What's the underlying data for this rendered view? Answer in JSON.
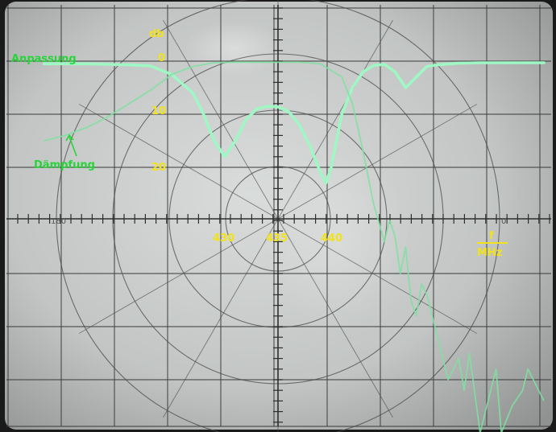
{
  "chart_data": {
    "type": "line",
    "ylabel": "db",
    "yticks": [
      "0",
      "10",
      "20"
    ],
    "xticks": [
      "430",
      "435",
      "440"
    ],
    "xlabel": "f",
    "xunit": "MHz",
    "scale_left": "180",
    "scale_right": "0",
    "grid": true,
    "series": [
      {
        "name": "Anpassung",
        "color": "#9ff7c4",
        "x": [
          413,
          415,
          417,
          419,
          421,
          423,
          425,
          427,
          428,
          429,
          430,
          431,
          432,
          433,
          434,
          435,
          436,
          437,
          438,
          439,
          439.5,
          440,
          440.5,
          441,
          442,
          443,
          444,
          445,
          446,
          447,
          448,
          449,
          450,
          452,
          454,
          456,
          458,
          460
        ],
        "y": [
          -0.5,
          -0.5,
          -0.5,
          -0.6,
          -0.7,
          -0.9,
          -2.5,
          -6,
          -10,
          -15,
          -18,
          -15,
          -11,
          -9,
          -8.5,
          -8.6,
          -9.5,
          -12,
          -16,
          -21,
          -23,
          -20,
          -15,
          -10,
          -5,
          -2,
          -0.8,
          -0.6,
          -2,
          -5,
          -3,
          -1,
          -0.7,
          -0.4,
          -0.3,
          -0.3,
          -0.3,
          -0.3
        ]
      },
      {
        "name": "Dämpfung",
        "color": "#7fe0a0",
        "x": [
          413,
          415,
          417,
          419,
          421,
          423,
          425,
          427,
          429,
          431,
          433,
          435,
          437,
          439,
          441,
          442,
          443,
          444,
          445,
          445.5,
          446,
          446.5,
          447,
          447.5,
          448,
          448.5,
          449,
          450,
          451,
          452,
          452.5,
          453,
          454,
          455,
          455.5,
          456,
          457,
          458,
          458.5,
          459,
          460
        ],
        "y": [
          -15,
          -14,
          -12.5,
          -10.5,
          -8,
          -5.5,
          -2.5,
          -1,
          -0.3,
          -0.2,
          -0.2,
          -0.2,
          -0.2,
          -0.5,
          -3,
          -8,
          -17,
          -27,
          -34,
          -30,
          -33,
          -40,
          -35,
          -45,
          -48,
          -42,
          -44,
          -52,
          -60,
          -56,
          -62,
          -55,
          -70,
          -62,
          -58,
          -70,
          -65,
          -62,
          -58,
          -60,
          -64
        ]
      }
    ]
  }
}
